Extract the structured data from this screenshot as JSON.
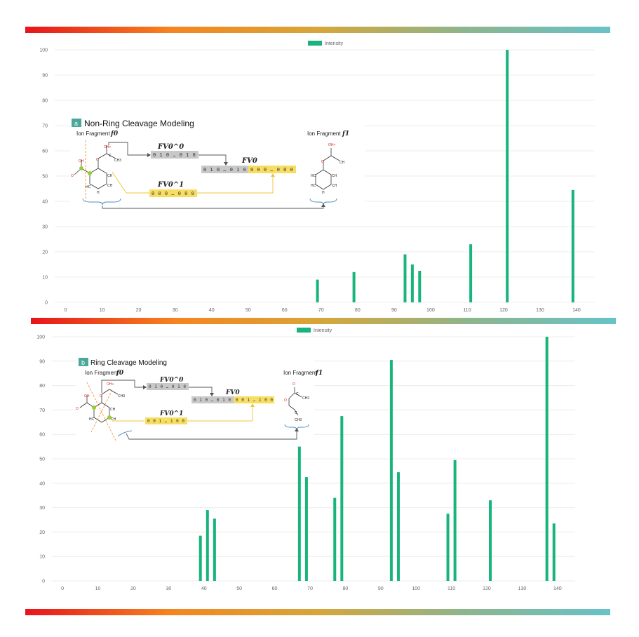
{
  "colors": {
    "bar": "#18b47b",
    "grid": "#ececec",
    "gradient": [
      "#e8141b",
      "#f5851f",
      "#d6a63a",
      "#8db58c",
      "#67c2c9"
    ],
    "fv_gray": "#c8c8c8",
    "fv_yellow": "#f7de62",
    "badge": "#4aa89a"
  },
  "chart_data": [
    {
      "type": "bar",
      "legend": "Intensity",
      "legend_position": "top-center",
      "grid": true,
      "x": [
        69,
        79,
        93,
        95,
        97,
        111,
        121,
        139
      ],
      "values": [
        9,
        12,
        19,
        15,
        12.5,
        23,
        100,
        44.5
      ],
      "xlim": [
        -3,
        145
      ],
      "ylim": [
        0,
        100
      ],
      "xticks": [
        0,
        10,
        20,
        30,
        40,
        50,
        60,
        70,
        80,
        90,
        100,
        110,
        120,
        130,
        140
      ],
      "yticks": [
        0,
        10,
        20,
        30,
        40,
        50,
        60,
        70,
        80,
        90,
        100
      ],
      "inset": {
        "badge": "a",
        "title": "Non-Ring Cleavage Modeling",
        "fragment_left_label": "Ion Fragment",
        "fragment_left_symbol": "f0",
        "fragment_right_label": "Ion Fragment",
        "fragment_right_symbol": "f1",
        "fv_top_label": "FV0^0",
        "fv_top_bits": "0 1 0  …  0 1 0",
        "fv_bottom_label": "FV0^1",
        "fv_bottom_bits": "0 0 0  …  0 0 0",
        "fv_merged_label": "FV0",
        "fv_merged_gray": "0 1 0  …  0 1 0",
        "fv_merged_yellow": "0 0 0  …  0 0 0"
      }
    },
    {
      "type": "bar",
      "legend": "Intensity",
      "legend_position": "top-center",
      "grid": true,
      "x": [
        39,
        41,
        43,
        67,
        69,
        77,
        79,
        93,
        95,
        109,
        111,
        121,
        137,
        139
      ],
      "values": [
        18.5,
        29,
        25.5,
        55,
        42.5,
        34,
        67.5,
        90.5,
        44.5,
        27.5,
        49.5,
        33,
        100,
        23.5
      ],
      "xlim": [
        -3,
        145
      ],
      "ylim": [
        0,
        100
      ],
      "xticks": [
        0,
        10,
        20,
        30,
        40,
        50,
        60,
        70,
        80,
        90,
        100,
        110,
        120,
        130,
        140
      ],
      "yticks": [
        0,
        10,
        20,
        30,
        40,
        50,
        60,
        70,
        80,
        90,
        100
      ],
      "inset": {
        "badge": "b",
        "title": "Ring Cleavage Modeling",
        "fragment_left_label": "Ion Fragment",
        "fragment_left_symbol": "f0",
        "fragment_right_label": "Ion Fragment",
        "fragment_right_symbol": "f1",
        "fv_top_label": "FV0^0",
        "fv_top_bits": "0 1 0  …  0 1 0",
        "fv_bottom_label": "FV0^1",
        "fv_bottom_bits": "0 0 1  …  1 0 0",
        "fv_merged_label": "FV0",
        "fv_merged_gray": "0 1 0  …  0 1 0",
        "fv_merged_yellow": "0 0 1  …  1 0 0"
      }
    }
  ],
  "chem_labels": {
    "oh": "OH",
    "oh_plus": "OH+",
    "oh2_plus": "OH2+",
    "o": "O",
    "c": "C",
    "ch": "CH",
    "ch2": "CH2",
    "ch3": "CH3",
    "hc": "HC",
    "h": "H",
    "cu": "Cu"
  }
}
